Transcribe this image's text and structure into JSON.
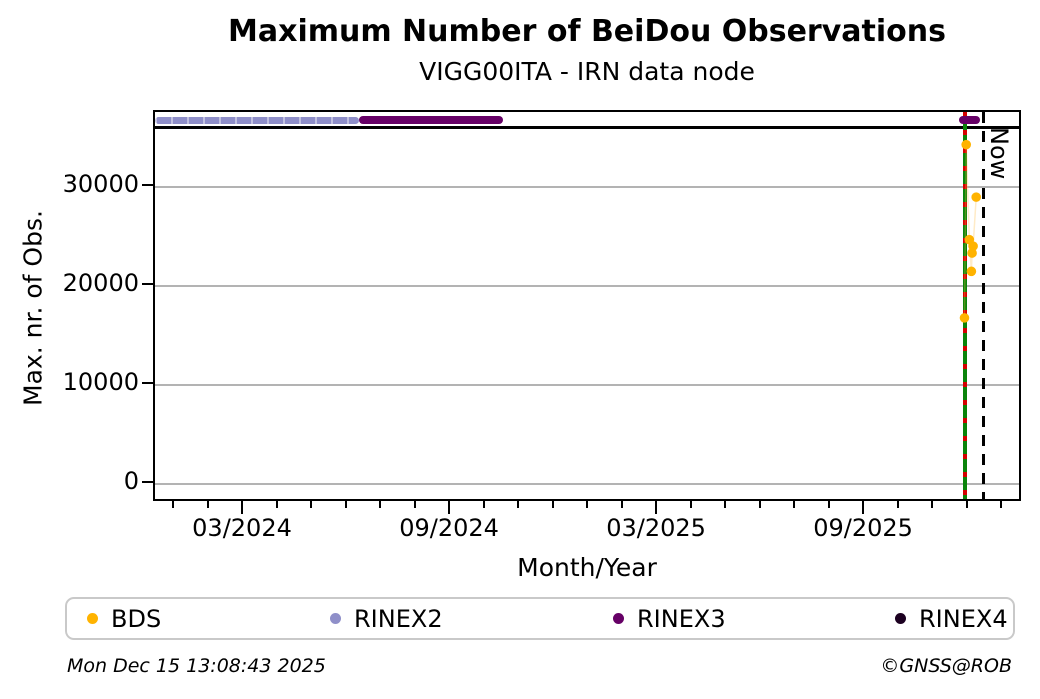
{
  "header": {
    "title": "Maximum Number of BeiDou Observations",
    "subtitle": "VIGG00ITA - IRN data node"
  },
  "footer": {
    "timestamp": "Mon Dec 15 13:08:43 2025",
    "copyright": "©GNSS@ROB"
  },
  "chart_data": {
    "type": "scatter",
    "title": "Maximum Number of BeiDou Observations",
    "subtitle": "VIGG00ITA - IRN data node",
    "xlabel": "Month/Year",
    "ylabel": "Max. nr. of Obs.",
    "x_axis": {
      "unit": "months since 2024-01",
      "domain": [
        -0.58,
        24.46
      ],
      "major_ticks": [
        {
          "m": 2,
          "label": "03/2024"
        },
        {
          "m": 8,
          "label": "09/2024"
        },
        {
          "m": 14,
          "label": "03/2025"
        },
        {
          "m": 20,
          "label": "09/2025"
        }
      ],
      "minor_tick_months": [
        0,
        1,
        2,
        3,
        4,
        5,
        6,
        7,
        8,
        9,
        10,
        11,
        12,
        13,
        14,
        15,
        16,
        17,
        18,
        19,
        20,
        21,
        22,
        23,
        24
      ]
    },
    "y_axis": {
      "lim": [
        -1550,
        37550
      ],
      "ticks": [
        {
          "v": 0,
          "label": "0"
        },
        {
          "v": 10000,
          "label": "10000"
        },
        {
          "v": 20000,
          "label": "20000"
        },
        {
          "v": 30000,
          "label": "30000"
        }
      ],
      "grid_values": [
        0,
        10000,
        20000,
        30000
      ],
      "grid_color": "#b3b3b3"
    },
    "reference_line": {
      "name": "max-observations-line",
      "value": 36000,
      "color": "#000000"
    },
    "series": [
      {
        "name": "BDS",
        "type": "points",
        "color": "#FFB300",
        "connector_color": "rgba(255,190,70,0.3)",
        "points": [
          [
            22.88,
            16750
          ],
          [
            22.93,
            34250
          ],
          [
            23.02,
            24650
          ],
          [
            23.08,
            21450
          ],
          [
            23.1,
            23300
          ],
          [
            23.13,
            24000
          ],
          [
            23.22,
            28950
          ]
        ]
      },
      {
        "name": "RINEX2",
        "type": "segments",
        "color": "#8F8FC9",
        "value": 36700,
        "segments": [
          [
            -0.58,
            5.33
          ]
        ]
      },
      {
        "name": "RINEX3",
        "type": "segments",
        "color": "#660066",
        "value": 36750,
        "segments": [
          [
            5.33,
            9.52
          ],
          [
            22.72,
            23.34
          ]
        ]
      },
      {
        "name": "RINEX4",
        "type": "segments",
        "color": "#1c0021",
        "value": null,
        "segments": []
      }
    ],
    "annotations": {
      "latest_data_line": {
        "m": 22.89,
        "color": "#0a830a",
        "dash_color": "#d40000"
      },
      "now_line": {
        "m": 23.44,
        "label": "Now",
        "color": "#000000"
      }
    },
    "legend": [
      {
        "label": "BDS",
        "color": "#FFB300"
      },
      {
        "label": "RINEX2",
        "color": "#8F8FC9"
      },
      {
        "label": "RINEX3",
        "color": "#660066"
      },
      {
        "label": "RINEX4",
        "color": "#1c0021"
      }
    ],
    "legend_position": "bottom",
    "grid": "horizontal-only"
  }
}
